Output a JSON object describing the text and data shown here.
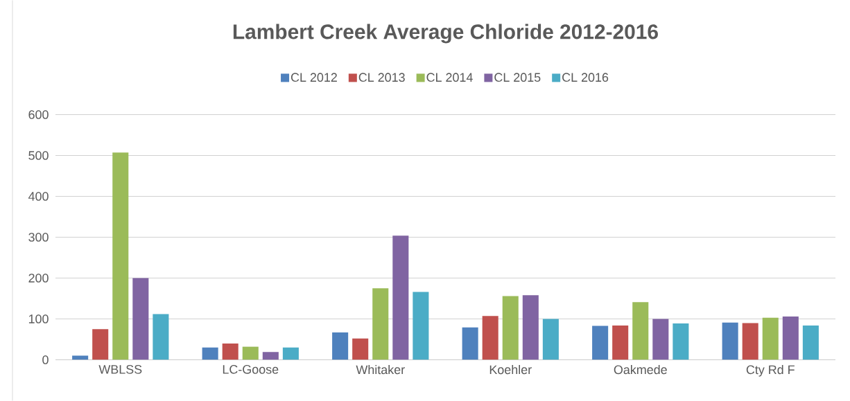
{
  "chart_data": {
    "type": "bar",
    "title": "Lambert Creek Average Chloride 2012-2016",
    "categories": [
      "WBLSS",
      "LC-Goose",
      "Whitaker",
      "Koehler",
      "Oakmede",
      "Cty Rd F"
    ],
    "series": [
      {
        "name": "CL 2012",
        "color": "#4f81bd",
        "values": [
          10,
          30,
          67,
          79,
          83,
          91
        ]
      },
      {
        "name": "CL 2013",
        "color": "#c0504d",
        "values": [
          75,
          40,
          52,
          107,
          84,
          90
        ]
      },
      {
        "name": "CL 2014",
        "color": "#9bbb59",
        "values": [
          507,
          32,
          175,
          156,
          141,
          103
        ]
      },
      {
        "name": "CL 2015",
        "color": "#8064a2",
        "values": [
          200,
          19,
          304,
          158,
          100,
          106
        ]
      },
      {
        "name": "CL 2016",
        "color": "#4bacc6",
        "values": [
          112,
          30,
          166,
          100,
          89,
          84
        ]
      }
    ],
    "ylim": [
      0,
      600
    ],
    "yticks": [
      0,
      100,
      200,
      300,
      400,
      500,
      600
    ],
    "grid": "y",
    "legend": "top"
  }
}
